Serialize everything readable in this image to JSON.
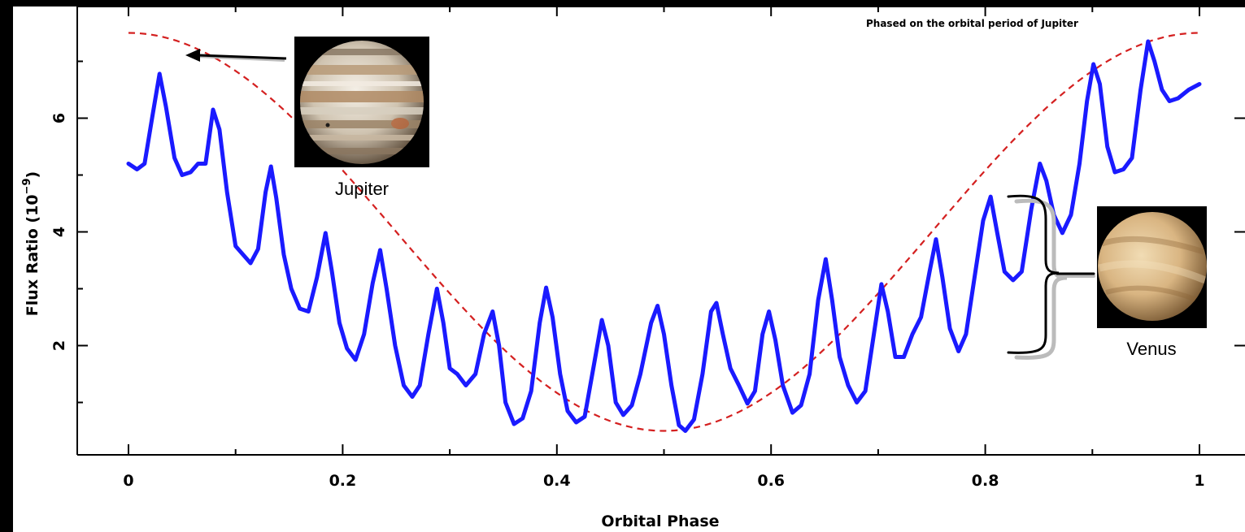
{
  "chart_data": {
    "type": "line",
    "annotation": "Phased on the orbital period of Jupiter",
    "xlabel": "Orbital Phase",
    "ylabel_main": "Flux Ratio (10",
    "ylabel_exp": "−9",
    "ylabel_close": ")",
    "xlim": [
      -0.05,
      1.045
    ],
    "ylim": [
      0.2,
      7.95
    ],
    "x_ticks": [
      {
        "value": 0,
        "label": "0"
      },
      {
        "value": 0.2,
        "label": "0.2"
      },
      {
        "value": 0.4,
        "label": "0.4"
      },
      {
        "value": 0.6,
        "label": "0.6"
      },
      {
        "value": 0.8,
        "label": "0.8"
      },
      {
        "value": 1,
        "label": "1"
      }
    ],
    "y_ticks": [
      {
        "value": 2,
        "label": "2"
      },
      {
        "value": 4,
        "label": "4"
      },
      {
        "value": 6,
        "label": "6"
      }
    ],
    "series": [
      {
        "color": "#1a1aff",
        "style": "solid",
        "points": [
          [
            0.0,
            5.2
          ],
          [
            0.008,
            5.1
          ],
          [
            0.015,
            5.2
          ],
          [
            0.022,
            6.0
          ],
          [
            0.029,
            6.78
          ],
          [
            0.035,
            6.2
          ],
          [
            0.043,
            5.3
          ],
          [
            0.05,
            5.0
          ],
          [
            0.058,
            5.05
          ],
          [
            0.065,
            5.2
          ],
          [
            0.072,
            5.2
          ],
          [
            0.079,
            6.15
          ],
          [
            0.085,
            5.8
          ],
          [
            0.092,
            4.7
          ],
          [
            0.1,
            3.75
          ],
          [
            0.107,
            3.6
          ],
          [
            0.114,
            3.45
          ],
          [
            0.121,
            3.7
          ],
          [
            0.128,
            4.7
          ],
          [
            0.133,
            5.15
          ],
          [
            0.138,
            4.6
          ],
          [
            0.145,
            3.6
          ],
          [
            0.152,
            3.0
          ],
          [
            0.16,
            2.65
          ],
          [
            0.168,
            2.6
          ],
          [
            0.176,
            3.2
          ],
          [
            0.184,
            3.98
          ],
          [
            0.19,
            3.3
          ],
          [
            0.197,
            2.4
          ],
          [
            0.204,
            1.95
          ],
          [
            0.212,
            1.75
          ],
          [
            0.22,
            2.2
          ],
          [
            0.228,
            3.1
          ],
          [
            0.235,
            3.68
          ],
          [
            0.241,
            3.0
          ],
          [
            0.249,
            2.0
          ],
          [
            0.257,
            1.3
          ],
          [
            0.265,
            1.1
          ],
          [
            0.272,
            1.3
          ],
          [
            0.28,
            2.2
          ],
          [
            0.288,
            3.0
          ],
          [
            0.294,
            2.4
          ],
          [
            0.3,
            1.6
          ],
          [
            0.307,
            1.5
          ],
          [
            0.315,
            1.3
          ],
          [
            0.324,
            1.5
          ],
          [
            0.332,
            2.2
          ],
          [
            0.34,
            2.6
          ],
          [
            0.346,
            2.0
          ],
          [
            0.352,
            1.0
          ],
          [
            0.36,
            0.62
          ],
          [
            0.368,
            0.72
          ],
          [
            0.376,
            1.2
          ],
          [
            0.384,
            2.4
          ],
          [
            0.39,
            3.02
          ],
          [
            0.396,
            2.5
          ],
          [
            0.403,
            1.5
          ],
          [
            0.41,
            0.85
          ],
          [
            0.418,
            0.65
          ],
          [
            0.426,
            0.75
          ],
          [
            0.434,
            1.6
          ],
          [
            0.442,
            2.45
          ],
          [
            0.448,
            2.0
          ],
          [
            0.455,
            1.0
          ],
          [
            0.462,
            0.78
          ],
          [
            0.47,
            0.95
          ],
          [
            0.478,
            1.5
          ],
          [
            0.488,
            2.4
          ],
          [
            0.494,
            2.7
          ],
          [
            0.5,
            2.2
          ],
          [
            0.507,
            1.3
          ],
          [
            0.514,
            0.6
          ],
          [
            0.52,
            0.5
          ],
          [
            0.528,
            0.7
          ],
          [
            0.536,
            1.5
          ],
          [
            0.544,
            2.6
          ],
          [
            0.549,
            2.75
          ],
          [
            0.555,
            2.2
          ],
          [
            0.562,
            1.6
          ],
          [
            0.57,
            1.3
          ],
          [
            0.578,
            0.98
          ],
          [
            0.585,
            1.2
          ],
          [
            0.592,
            2.2
          ],
          [
            0.598,
            2.6
          ],
          [
            0.604,
            2.1
          ],
          [
            0.611,
            1.3
          ],
          [
            0.62,
            0.82
          ],
          [
            0.628,
            0.95
          ],
          [
            0.636,
            1.5
          ],
          [
            0.644,
            2.8
          ],
          [
            0.651,
            3.52
          ],
          [
            0.657,
            2.8
          ],
          [
            0.664,
            1.8
          ],
          [
            0.672,
            1.3
          ],
          [
            0.68,
            1.0
          ],
          [
            0.688,
            1.2
          ],
          [
            0.696,
            2.2
          ],
          [
            0.703,
            3.08
          ],
          [
            0.709,
            2.6
          ],
          [
            0.716,
            1.8
          ],
          [
            0.724,
            1.8
          ],
          [
            0.732,
            2.2
          ],
          [
            0.74,
            2.5
          ],
          [
            0.748,
            3.3
          ],
          [
            0.754,
            3.87
          ],
          [
            0.76,
            3.2
          ],
          [
            0.767,
            2.3
          ],
          [
            0.775,
            1.9
          ],
          [
            0.782,
            2.2
          ],
          [
            0.79,
            3.2
          ],
          [
            0.798,
            4.2
          ],
          [
            0.805,
            4.62
          ],
          [
            0.811,
            4.0
          ],
          [
            0.818,
            3.3
          ],
          [
            0.826,
            3.15
          ],
          [
            0.834,
            3.3
          ],
          [
            0.843,
            4.4
          ],
          [
            0.851,
            5.2
          ],
          [
            0.857,
            4.9
          ],
          [
            0.864,
            4.3
          ],
          [
            0.872,
            3.98
          ],
          [
            0.88,
            4.3
          ],
          [
            0.888,
            5.2
          ],
          [
            0.895,
            6.3
          ],
          [
            0.901,
            6.95
          ],
          [
            0.907,
            6.6
          ],
          [
            0.914,
            5.5
          ],
          [
            0.921,
            5.05
          ],
          [
            0.929,
            5.1
          ],
          [
            0.937,
            5.3
          ],
          [
            0.945,
            6.5
          ],
          [
            0.952,
            7.35
          ],
          [
            0.958,
            7.0
          ],
          [
            0.965,
            6.5
          ],
          [
            0.972,
            6.3
          ],
          [
            0.98,
            6.35
          ],
          [
            0.99,
            6.5
          ],
          [
            1.0,
            6.6
          ]
        ]
      },
      {
        "color": "#d42020",
        "style": "dashed",
        "model": "cosine",
        "mean": 4.0,
        "amplitude": 3.5
      }
    ],
    "planets": [
      {
        "label": "Jupiter"
      },
      {
        "label": "Venus"
      }
    ]
  },
  "colors": {
    "background": "#ffffff",
    "frame": "#000000",
    "venus_base": "#c9a372",
    "jupiter_band_light": "#e8e0d0",
    "jupiter_band_dark": "#a08060"
  }
}
